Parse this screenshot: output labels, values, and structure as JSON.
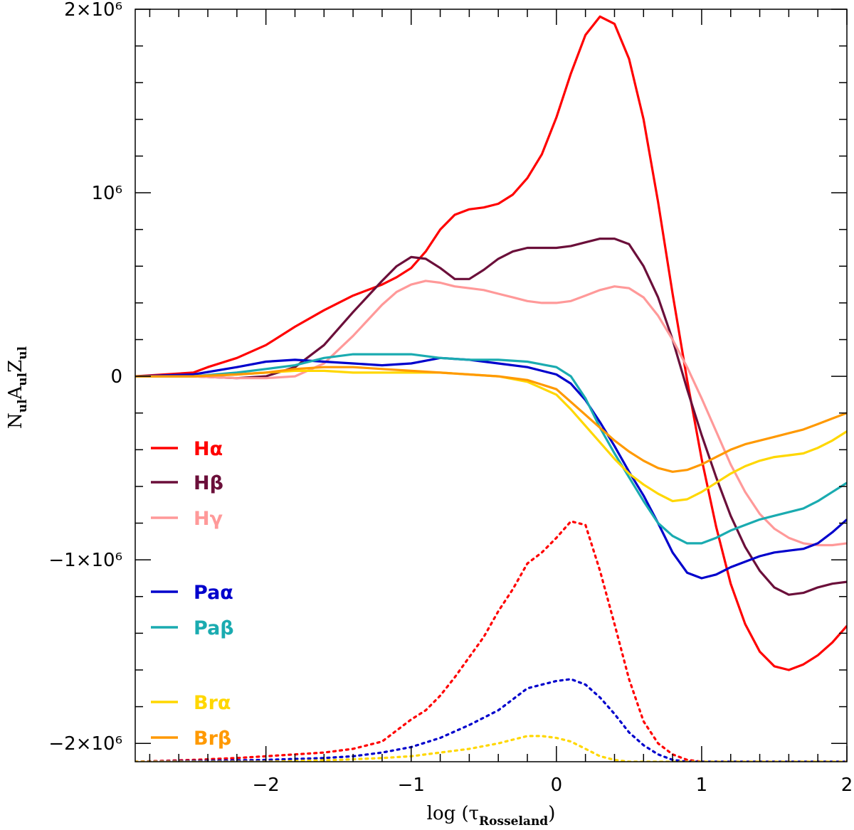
{
  "chart_data": {
    "type": "line",
    "xlabel": "log (τRosseland)",
    "ylabel": "NulAulZul",
    "xlim": [
      -2.9,
      2.0
    ],
    "ylim": [
      -2.1,
      2.0
    ],
    "y_unit_factor": 1000000,
    "grid": false,
    "legend_position": "left",
    "x_ticks": [
      {
        "value": -2,
        "label": "−2"
      },
      {
        "value": -1,
        "label": "−1"
      },
      {
        "value": 0,
        "label": "0"
      },
      {
        "value": 1,
        "label": "1"
      },
      {
        "value": 2,
        "label": "2"
      }
    ],
    "y_ticks": [
      {
        "value": 2,
        "label": "2×10⁶"
      },
      {
        "value": 1,
        "label": "10⁶"
      },
      {
        "value": 0,
        "label": "0"
      },
      {
        "value": -1,
        "label": "−1×10⁶"
      },
      {
        "value": -2,
        "label": "−2×10⁶"
      }
    ],
    "series": [
      {
        "name": "Hα",
        "color": "#ff0000",
        "style": "solid",
        "x": [
          -2.9,
          -2.5,
          -2.4,
          -2.2,
          -2.0,
          -1.8,
          -1.6,
          -1.4,
          -1.2,
          -1.1,
          -1.0,
          -0.9,
          -0.8,
          -0.7,
          -0.6,
          -0.5,
          -0.4,
          -0.3,
          -0.2,
          -0.1,
          0.0,
          0.1,
          0.2,
          0.3,
          0.4,
          0.5,
          0.6,
          0.7,
          0.8,
          0.9,
          1.0,
          1.1,
          1.2,
          1.3,
          1.4,
          1.5,
          1.6,
          1.7,
          1.8,
          1.9,
          2.0
        ],
        "y": [
          0.0,
          0.02,
          0.05,
          0.1,
          0.17,
          0.27,
          0.36,
          0.44,
          0.5,
          0.54,
          0.59,
          0.68,
          0.8,
          0.88,
          0.91,
          0.92,
          0.94,
          0.99,
          1.08,
          1.21,
          1.41,
          1.65,
          1.86,
          1.96,
          1.92,
          1.73,
          1.4,
          0.95,
          0.45,
          -0.02,
          -0.45,
          -0.82,
          -1.13,
          -1.35,
          -1.5,
          -1.58,
          -1.6,
          -1.57,
          -1.52,
          -1.45,
          -1.36
        ]
      },
      {
        "name": "Hβ",
        "color": "#6b0f3a",
        "style": "solid",
        "x": [
          -2.9,
          -2.5,
          -2.2,
          -2.0,
          -1.8,
          -1.6,
          -1.4,
          -1.2,
          -1.1,
          -1.0,
          -0.9,
          -0.8,
          -0.7,
          -0.6,
          -0.5,
          -0.4,
          -0.3,
          -0.2,
          -0.1,
          0.0,
          0.1,
          0.2,
          0.3,
          0.4,
          0.5,
          0.6,
          0.7,
          0.8,
          0.9,
          1.0,
          1.1,
          1.2,
          1.3,
          1.4,
          1.5,
          1.6,
          1.7,
          1.8,
          1.9,
          2.0
        ],
        "y": [
          0.0,
          0.0,
          -0.01,
          0.0,
          0.05,
          0.17,
          0.35,
          0.52,
          0.6,
          0.65,
          0.64,
          0.59,
          0.53,
          0.53,
          0.58,
          0.64,
          0.68,
          0.7,
          0.7,
          0.7,
          0.71,
          0.73,
          0.75,
          0.75,
          0.72,
          0.6,
          0.43,
          0.2,
          -0.07,
          -0.32,
          -0.55,
          -0.76,
          -0.93,
          -1.06,
          -1.15,
          -1.19,
          -1.18,
          -1.15,
          -1.13,
          -1.12
        ]
      },
      {
        "name": "Hγ",
        "color": "#ff9999",
        "style": "solid",
        "x": [
          -2.9,
          -2.5,
          -2.2,
          -2.0,
          -1.8,
          -1.6,
          -1.4,
          -1.2,
          -1.1,
          -1.0,
          -0.9,
          -0.8,
          -0.7,
          -0.6,
          -0.5,
          -0.4,
          -0.3,
          -0.2,
          -0.1,
          0.0,
          0.1,
          0.2,
          0.3,
          0.4,
          0.5,
          0.6,
          0.7,
          0.8,
          0.9,
          1.0,
          1.1,
          1.2,
          1.3,
          1.4,
          1.5,
          1.6,
          1.7,
          1.8,
          1.9,
          2.0
        ],
        "y": [
          0.0,
          0.0,
          -0.01,
          -0.01,
          0.0,
          0.07,
          0.22,
          0.39,
          0.46,
          0.5,
          0.52,
          0.51,
          0.49,
          0.48,
          0.47,
          0.45,
          0.43,
          0.41,
          0.4,
          0.4,
          0.41,
          0.44,
          0.47,
          0.49,
          0.48,
          0.43,
          0.33,
          0.2,
          0.05,
          -0.12,
          -0.3,
          -0.48,
          -0.63,
          -0.75,
          -0.83,
          -0.88,
          -0.91,
          -0.92,
          -0.92,
          -0.91
        ]
      },
      {
        "name": "Paα",
        "color": "#0000cc",
        "style": "solid",
        "x": [
          -2.9,
          -2.5,
          -2.2,
          -2.0,
          -1.8,
          -1.6,
          -1.4,
          -1.2,
          -1.0,
          -0.8,
          -0.6,
          -0.4,
          -0.2,
          0.0,
          0.1,
          0.2,
          0.3,
          0.4,
          0.5,
          0.6,
          0.7,
          0.8,
          0.9,
          1.0,
          1.1,
          1.2,
          1.3,
          1.4,
          1.5,
          1.6,
          1.7,
          1.8,
          1.9,
          2.0
        ],
        "y": [
          0.0,
          0.01,
          0.05,
          0.08,
          0.09,
          0.08,
          0.07,
          0.06,
          0.07,
          0.1,
          0.09,
          0.07,
          0.05,
          0.01,
          -0.04,
          -0.13,
          -0.25,
          -0.38,
          -0.52,
          -0.65,
          -0.8,
          -0.96,
          -1.07,
          -1.1,
          -1.08,
          -1.04,
          -1.01,
          -0.98,
          -0.96,
          -0.95,
          -0.94,
          -0.91,
          -0.85,
          -0.78
        ]
      },
      {
        "name": "Paβ",
        "color": "#1aabb0",
        "style": "solid",
        "x": [
          -2.9,
          -2.5,
          -2.2,
          -2.0,
          -1.8,
          -1.6,
          -1.4,
          -1.2,
          -1.0,
          -0.8,
          -0.6,
          -0.4,
          -0.2,
          0.0,
          0.1,
          0.2,
          0.3,
          0.4,
          0.5,
          0.6,
          0.7,
          0.8,
          0.9,
          1.0,
          1.1,
          1.2,
          1.3,
          1.4,
          1.5,
          1.6,
          1.7,
          1.8,
          1.9,
          2.0
        ],
        "y": [
          0.0,
          0.0,
          0.02,
          0.04,
          0.06,
          0.1,
          0.12,
          0.12,
          0.12,
          0.1,
          0.09,
          0.09,
          0.08,
          0.05,
          0.0,
          -0.12,
          -0.28,
          -0.42,
          -0.55,
          -0.68,
          -0.8,
          -0.87,
          -0.91,
          -0.91,
          -0.88,
          -0.84,
          -0.81,
          -0.78,
          -0.76,
          -0.74,
          -0.72,
          -0.68,
          -0.63,
          -0.58
        ]
      },
      {
        "name": "Brα",
        "color": "#ffd700",
        "style": "solid",
        "x": [
          -2.9,
          -2.5,
          -2.2,
          -2.0,
          -1.8,
          -1.6,
          -1.4,
          -1.2,
          -1.0,
          -0.8,
          -0.6,
          -0.4,
          -0.2,
          0.0,
          0.1,
          0.2,
          0.3,
          0.4,
          0.5,
          0.6,
          0.7,
          0.8,
          0.9,
          1.0,
          1.1,
          1.2,
          1.3,
          1.4,
          1.5,
          1.6,
          1.7,
          1.8,
          1.9,
          2.0
        ],
        "y": [
          0.0,
          0.0,
          0.01,
          0.02,
          0.03,
          0.03,
          0.02,
          0.02,
          0.02,
          0.02,
          0.01,
          0.0,
          -0.03,
          -0.1,
          -0.18,
          -0.27,
          -0.36,
          -0.45,
          -0.53,
          -0.59,
          -0.64,
          -0.68,
          -0.67,
          -0.63,
          -0.58,
          -0.53,
          -0.49,
          -0.46,
          -0.44,
          -0.43,
          -0.42,
          -0.39,
          -0.35,
          -0.3
        ]
      },
      {
        "name": "Brβ",
        "color": "#ff9900",
        "style": "solid",
        "x": [
          -2.9,
          -2.5,
          -2.2,
          -2.0,
          -1.8,
          -1.6,
          -1.4,
          -1.2,
          -1.0,
          -0.8,
          -0.6,
          -0.4,
          -0.2,
          0.0,
          0.1,
          0.2,
          0.3,
          0.4,
          0.5,
          0.6,
          0.7,
          0.8,
          0.9,
          1.0,
          1.1,
          1.2,
          1.3,
          1.4,
          1.5,
          1.6,
          1.7,
          1.8,
          1.9,
          2.0
        ],
        "y": [
          0.0,
          0.0,
          0.01,
          0.02,
          0.04,
          0.05,
          0.05,
          0.04,
          0.03,
          0.02,
          0.01,
          0.0,
          -0.02,
          -0.07,
          -0.14,
          -0.21,
          -0.28,
          -0.35,
          -0.41,
          -0.46,
          -0.5,
          -0.52,
          -0.51,
          -0.48,
          -0.44,
          -0.4,
          -0.37,
          -0.35,
          -0.33,
          -0.31,
          -0.29,
          -0.26,
          -0.23,
          -0.2
        ]
      },
      {
        "name": "",
        "color": "#ff0000",
        "style": "dotted",
        "x": [
          -2.9,
          -2.5,
          -2.2,
          -2.0,
          -1.8,
          -1.6,
          -1.4,
          -1.2,
          -1.1,
          -1.0,
          -0.9,
          -0.8,
          -0.7,
          -0.6,
          -0.5,
          -0.4,
          -0.3,
          -0.2,
          -0.1,
          0.0,
          0.1,
          0.2,
          0.3,
          0.4,
          0.5,
          0.6,
          0.7,
          0.8,
          0.9,
          1.0,
          1.2,
          1.5,
          2.0
        ],
        "y": [
          -2.1,
          -2.09,
          -2.08,
          -2.07,
          -2.06,
          -2.05,
          -2.03,
          -1.99,
          -1.93,
          -1.87,
          -1.82,
          -1.74,
          -1.64,
          -1.53,
          -1.42,
          -1.28,
          -1.16,
          -1.02,
          -0.96,
          -0.88,
          -0.79,
          -0.81,
          -1.06,
          -1.35,
          -1.65,
          -1.88,
          -2.0,
          -2.06,
          -2.09,
          -2.1,
          -2.1,
          -2.1,
          -2.1
        ]
      },
      {
        "name": "",
        "color": "#0000cc",
        "style": "dotted",
        "x": [
          -2.9,
          -2.0,
          -1.6,
          -1.4,
          -1.2,
          -1.0,
          -0.8,
          -0.6,
          -0.4,
          -0.3,
          -0.2,
          -0.1,
          0.0,
          0.1,
          0.2,
          0.3,
          0.4,
          0.5,
          0.6,
          0.7,
          0.8,
          0.9,
          1.0,
          1.5,
          2.0
        ],
        "y": [
          -2.1,
          -2.09,
          -2.08,
          -2.07,
          -2.05,
          -2.02,
          -1.97,
          -1.9,
          -1.82,
          -1.76,
          -1.7,
          -1.68,
          -1.66,
          -1.65,
          -1.68,
          -1.75,
          -1.84,
          -1.94,
          -2.01,
          -2.06,
          -2.09,
          -2.1,
          -2.1,
          -2.1,
          -2.1
        ]
      },
      {
        "name": "",
        "color": "#ffd700",
        "style": "dotted",
        "x": [
          -2.9,
          -2.0,
          -1.5,
          -1.2,
          -1.0,
          -0.8,
          -0.6,
          -0.4,
          -0.3,
          -0.2,
          -0.1,
          0.0,
          0.1,
          0.2,
          0.3,
          0.4,
          0.5,
          1.0,
          2.0
        ],
        "y": [
          -2.1,
          -2.1,
          -2.09,
          -2.08,
          -2.07,
          -2.05,
          -2.03,
          -2.0,
          -1.98,
          -1.96,
          -1.96,
          -1.97,
          -1.99,
          -2.03,
          -2.07,
          -2.09,
          -2.1,
          -2.1,
          -2.1
        ]
      }
    ],
    "legend": [
      {
        "label": "Hα",
        "color": "#ff0000"
      },
      {
        "label": "Hβ",
        "color": "#6b0f3a"
      },
      {
        "label": "Hγ",
        "color": "#ff9999"
      },
      {
        "label": "Paα",
        "color": "#0000cc"
      },
      {
        "label": "Paβ",
        "color": "#1aabb0"
      },
      {
        "label": "Brα",
        "color": "#ffd700"
      },
      {
        "label": "Brβ",
        "color": "#ff9900"
      }
    ]
  }
}
